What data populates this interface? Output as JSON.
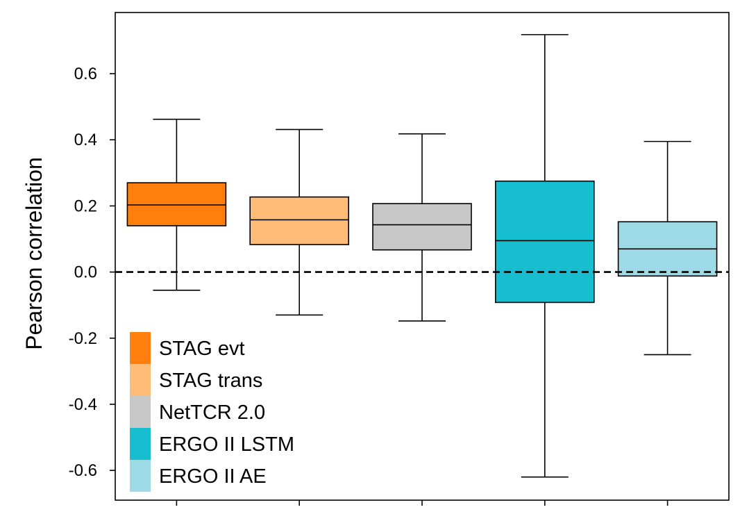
{
  "chart_data": {
    "type": "box",
    "title": "",
    "xlabel": "",
    "ylabel": "Pearson correlation",
    "ylim": [
      -0.69,
      0.785
    ],
    "yticks": [
      "0.6",
      "0.4",
      "0.2",
      "0.0",
      "-0.2",
      "-0.4",
      "-0.6"
    ],
    "ytick_values": [
      0.6,
      0.4,
      0.2,
      0.0,
      -0.2,
      -0.4,
      -0.6
    ],
    "reference_line": {
      "y": 0.0,
      "style": "dashed",
      "color": "#000000"
    },
    "legend_position": "bottom-left",
    "series": [
      {
        "name": "STAG evt",
        "color": "#ff7f0e",
        "whisker_low": -0.055,
        "q1": 0.14,
        "median": 0.203,
        "q3": 0.27,
        "whisker_high": 0.462
      },
      {
        "name": "STAG trans",
        "color": "#ffbb78",
        "whisker_low": -0.13,
        "q1": 0.083,
        "median": 0.158,
        "q3": 0.227,
        "whisker_high": 0.431
      },
      {
        "name": "NetTCR 2.0",
        "color": "#c7c7c7",
        "whisker_low": -0.148,
        "q1": 0.067,
        "median": 0.143,
        "q3": 0.207,
        "whisker_high": 0.418
      },
      {
        "name": "ERGO II LSTM",
        "color": "#17becf",
        "whisker_low": -0.62,
        "q1": -0.092,
        "median": 0.095,
        "q3": 0.275,
        "whisker_high": 0.718
      },
      {
        "name": "ERGO II AE",
        "color": "#9edae5",
        "whisker_low": -0.25,
        "q1": -0.012,
        "median": 0.07,
        "q3": 0.152,
        "whisker_high": 0.395
      }
    ]
  }
}
